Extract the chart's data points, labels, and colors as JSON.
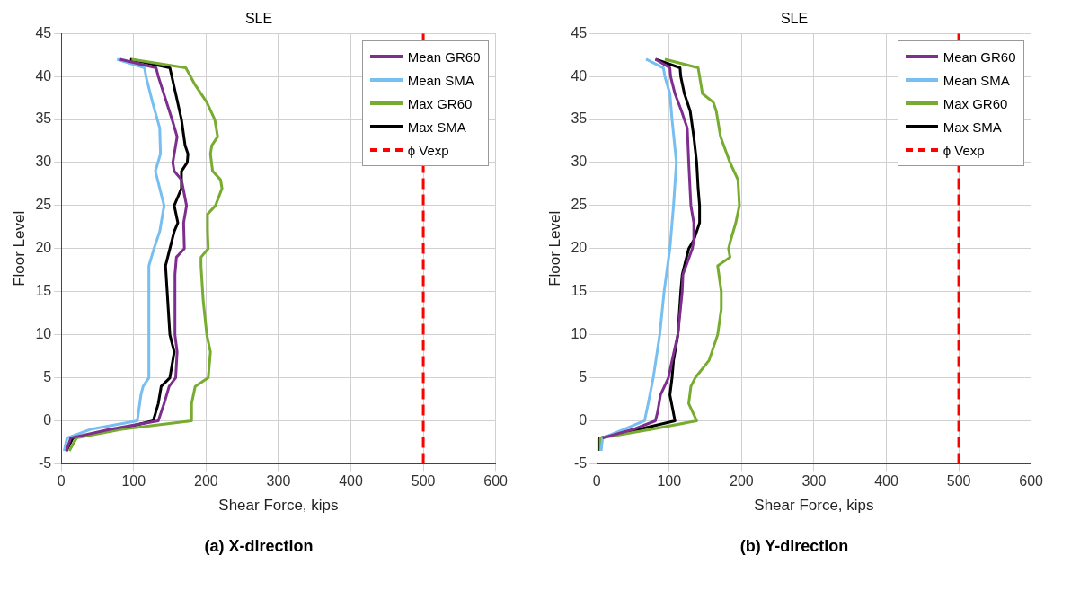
{
  "chart_data": [
    {
      "type": "line",
      "title": "SLE",
      "xlabel": "Shear Force, kips",
      "ylabel": "Floor Level",
      "xlim": [
        0,
        600
      ],
      "ylim": [
        -5,
        45
      ],
      "xticks": [
        0,
        100,
        200,
        300,
        400,
        500,
        600
      ],
      "yticks": [
        -5,
        0,
        5,
        10,
        15,
        20,
        25,
        30,
        35,
        40,
        45
      ],
      "grid": true,
      "legend": "top right",
      "annotations": [
        "(a) X-direction"
      ],
      "series": [
        {
          "name": "Mean GR60",
          "color": "#7e2f8e",
          "x": [
            7,
            13,
            67,
            134,
            142,
            149,
            158,
            160,
            157,
            157,
            159,
            170,
            169,
            173,
            166,
            156,
            154,
            160,
            153,
            134,
            131,
            81
          ],
          "values": [
            -3.5,
            -2,
            -1,
            0,
            2,
            4,
            5,
            8,
            10,
            17,
            19,
            20,
            23,
            25,
            28,
            29,
            30,
            33,
            35,
            40,
            41,
            42
          ]
        },
        {
          "name": "Mean SMA",
          "color": "#77bff0",
          "x": [
            4,
            8,
            40,
            105,
            110,
            113,
            121,
            121,
            128,
            136,
            142,
            130,
            137,
            136,
            126,
            117,
            115,
            77
          ],
          "values": [
            -3.5,
            -2,
            -1,
            0,
            3,
            4,
            5,
            18,
            20,
            22,
            25,
            29,
            31,
            34,
            37,
            40,
            41,
            42
          ]
        },
        {
          "name": "Max GR60",
          "color": "#77ac30",
          "x": [
            11,
            21,
            83,
            180,
            180,
            185,
            203,
            206,
            201,
            196,
            193,
            193,
            203,
            202,
            202,
            213,
            222,
            220,
            209,
            206,
            208,
            216,
            212,
            201,
            185,
            172,
            97
          ],
          "values": [
            -3.5,
            -2,
            -1,
            0,
            2,
            4,
            5,
            8,
            10,
            14,
            18,
            19,
            20,
            22,
            24,
            25,
            27,
            28,
            29,
            31,
            32,
            33,
            35,
            37,
            39,
            41,
            42
          ]
        },
        {
          "name": "Max SMA",
          "color": "#000000",
          "x": [
            7,
            16,
            78,
            127,
            134,
            138,
            150,
            156,
            150,
            144,
            150,
            156,
            161,
            156,
            166,
            166,
            174,
            175,
            171,
            166,
            158,
            150,
            95
          ],
          "values": [
            -3.5,
            -2,
            -1,
            0,
            2,
            4,
            5,
            8,
            10,
            18,
            20,
            22,
            23,
            25,
            27,
            29,
            30,
            31,
            32,
            35,
            38,
            41,
            42
          ]
        },
        {
          "name": "ϕ Vexp",
          "color": "#ff0000",
          "line_style": "dashed",
          "x": [
            500,
            500
          ],
          "values": [
            -5,
            45
          ]
        }
      ]
    },
    {
      "type": "line",
      "title": "SLE",
      "xlabel": "Shear Force, kips",
      "ylabel": "Floor Level",
      "xlim": [
        0,
        600
      ],
      "ylim": [
        -5,
        45
      ],
      "xticks": [
        0,
        100,
        200,
        300,
        400,
        500,
        600
      ],
      "yticks": [
        -5,
        0,
        5,
        10,
        15,
        20,
        25,
        30,
        35,
        40,
        45
      ],
      "grid": true,
      "legend": "top right",
      "annotations": [
        "(b) Y-direction"
      ],
      "series": [
        {
          "name": "Mean GR60",
          "color": "#7e2f8e",
          "x": [
            8,
            50,
            81,
            84,
            88,
            99,
            104,
            112,
            118,
            119,
            132,
            134,
            134,
            130,
            127,
            125,
            117,
            108,
            102,
            101,
            81
          ],
          "values": [
            -2,
            -1,
            0,
            1,
            3,
            5,
            7,
            10,
            15,
            17,
            20,
            21,
            23,
            25,
            30,
            34,
            36,
            38,
            40,
            41,
            42
          ]
        },
        {
          "name": "Mean SMA",
          "color": "#77bff0",
          "x": [
            6,
            8,
            37,
            66,
            71,
            78,
            87,
            93,
            101,
            106,
            110,
            104,
            101,
            94,
            92,
            68
          ],
          "values": [
            -3.5,
            -2,
            -1,
            0,
            2,
            5,
            10,
            15,
            20,
            25,
            30,
            35,
            38,
            40,
            41,
            42
          ]
        },
        {
          "name": "Max GR60",
          "color": "#77ac30",
          "x": [
            5,
            5,
            75,
            138,
            127,
            130,
            136,
            155,
            167,
            172,
            172,
            167,
            184,
            182,
            185,
            192,
            197,
            195,
            184,
            171,
            165,
            161,
            146,
            142,
            140,
            94
          ],
          "values": [
            -3.5,
            -2,
            -1,
            0,
            2,
            4,
            5,
            7,
            10,
            13,
            15,
            18,
            19,
            20,
            21,
            23,
            25,
            28,
            30,
            33,
            36,
            37,
            38,
            40,
            41,
            42
          ]
        },
        {
          "name": "Max SMA",
          "color": "#000000",
          "x": [
            4,
            4,
            58,
            108,
            101,
            104,
            106,
            112,
            116,
            118,
            127,
            134,
            142,
            142,
            140,
            138,
            134,
            129,
            121,
            116,
            115,
            81
          ],
          "values": [
            -3.5,
            -2,
            -1,
            0,
            3,
            5,
            7,
            10,
            15,
            17,
            20,
            21,
            23,
            25,
            27,
            30,
            33,
            36,
            38,
            40,
            41,
            42
          ]
        },
        {
          "name": "ϕ Vexp",
          "color": "#ff0000",
          "line_style": "dashed",
          "x": [
            500,
            500
          ],
          "values": [
            -5,
            45
          ]
        }
      ]
    }
  ]
}
